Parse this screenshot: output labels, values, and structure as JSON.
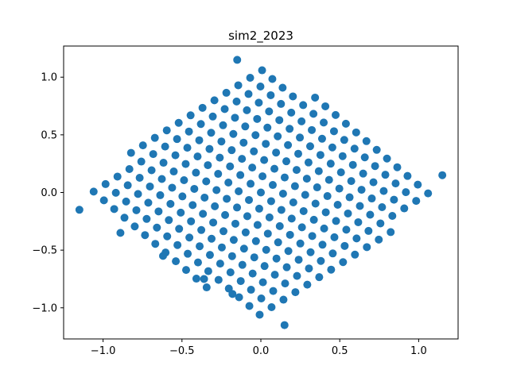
{
  "chart_data": {
    "type": "scatter",
    "title": "sim2_2023",
    "xlabel": "",
    "ylabel": "",
    "xlim": [
      -1.25,
      1.25
    ],
    "ylim": [
      -1.27,
      1.27
    ],
    "grid": false,
    "x_ticks": [
      -1.0,
      -0.5,
      0.0,
      0.5,
      1.0
    ],
    "x_tick_labels": [
      "−1.0",
      "−0.5",
      "0.0",
      "0.5",
      "1.0"
    ],
    "y_ticks": [
      -1.0,
      -0.5,
      0.0,
      0.5,
      1.0
    ],
    "y_tick_labels": [
      "−1.0",
      "−0.5",
      "0.0",
      "0.5",
      "1.0"
    ],
    "marker_color": "#1f77b4",
    "lattice": {
      "origin": [
        0.0,
        0.0
      ],
      "step_a": [
        0.0651,
        -0.0755
      ],
      "step_b": [
        0.0755,
        0.0651
      ],
      "i_range": [
        -15,
        15
      ],
      "j_range": [
        -15,
        15
      ],
      "max_radius": 1.17
    },
    "points": [
      {
        "x": -1.15,
        "y": -0.15
      },
      {
        "x": -0.89,
        "y": -0.35
      },
      {
        "x": -0.62,
        "y": -0.55
      },
      {
        "x": -0.36,
        "y": -0.75
      },
      {
        "x": -0.18,
        "y": -0.88
      },
      {
        "x": 0.15,
        "y": -1.15
      },
      {
        "x": 1.15,
        "y": 0.15
      },
      {
        "x": -0.15,
        "y": 1.15
      }
    ]
  }
}
